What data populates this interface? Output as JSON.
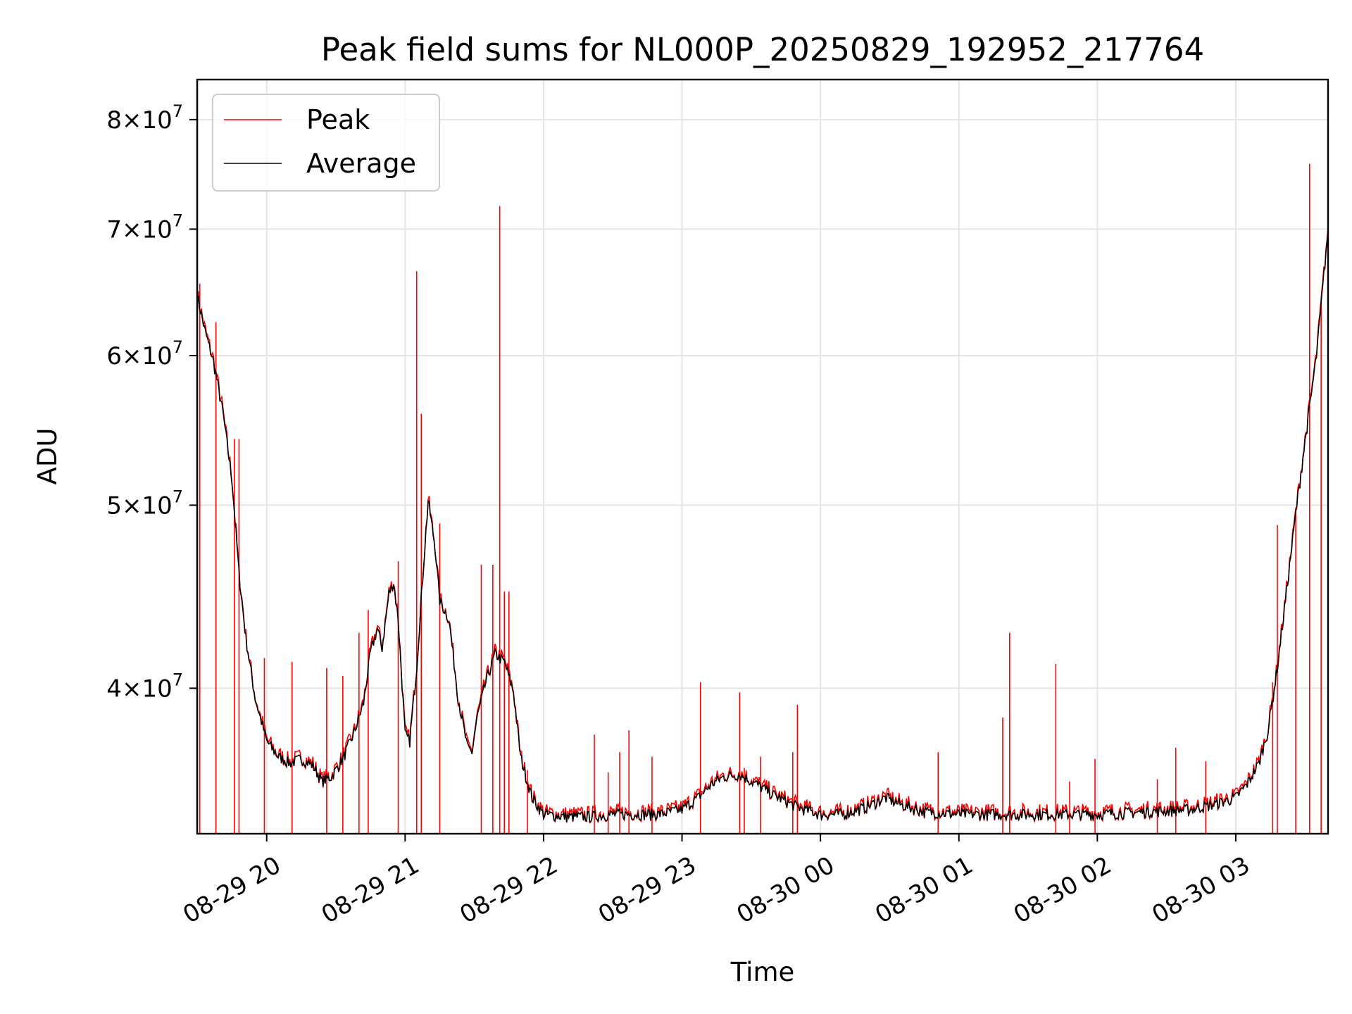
{
  "chart_data": {
    "type": "line",
    "title": "Peak field sums for NL000P_20250829_192952_217764",
    "xlabel": "Time",
    "ylabel": "ADU",
    "y_scale": "log",
    "x_range": [
      "2025-08-29 19:29:52",
      "2025-08-30 03:40:00"
    ],
    "ylim": [
      33500000,
      84000000
    ],
    "grid": true,
    "legend_position": "top-left",
    "x_ticks": [
      {
        "label": "08-29 20",
        "t": "2025-08-29 20:00"
      },
      {
        "label": "08-29 21",
        "t": "2025-08-29 21:00"
      },
      {
        "label": "08-29 22",
        "t": "2025-08-29 22:00"
      },
      {
        "label": "08-29 23",
        "t": "2025-08-29 23:00"
      },
      {
        "label": "08-30 00",
        "t": "2025-08-30 00:00"
      },
      {
        "label": "08-30 01",
        "t": "2025-08-30 01:00"
      },
      {
        "label": "08-30 02",
        "t": "2025-08-30 02:00"
      },
      {
        "label": "08-30 03",
        "t": "2025-08-30 03:00"
      }
    ],
    "y_ticks": [
      {
        "value": 40000000,
        "mantissa": "4",
        "base": "10",
        "exp": "7"
      },
      {
        "value": 50000000,
        "mantissa": "5",
        "base": "10",
        "exp": "7"
      },
      {
        "value": 60000000,
        "mantissa": "6",
        "base": "10",
        "exp": "7"
      },
      {
        "value": 70000000,
        "mantissa": "7",
        "base": "10",
        "exp": "7"
      },
      {
        "value": 80000000,
        "mantissa": "8",
        "base": "10",
        "exp": "7"
      }
    ],
    "series": [
      {
        "name": "Average",
        "color": "#000000",
        "points": [
          [
            "2025-08-29 19:30",
            64500000
          ],
          [
            "2025-08-29 19:33",
            62000000
          ],
          [
            "2025-08-29 19:37",
            59500000
          ],
          [
            "2025-08-29 19:41",
            56000000
          ],
          [
            "2025-08-29 19:45",
            51500000
          ],
          [
            "2025-08-29 19:48",
            46000000
          ],
          [
            "2025-08-29 19:51",
            42500000
          ],
          [
            "2025-08-29 19:55",
            39500000
          ],
          [
            "2025-08-29 20:00",
            37500000
          ],
          [
            "2025-08-29 20:05",
            36800000
          ],
          [
            "2025-08-29 20:10",
            36500000
          ],
          [
            "2025-08-29 20:15",
            36700000
          ],
          [
            "2025-08-29 20:20",
            36400000
          ],
          [
            "2025-08-29 20:24",
            35700000
          ],
          [
            "2025-08-29 20:28",
            35900000
          ],
          [
            "2025-08-29 20:33",
            36700000
          ],
          [
            "2025-08-29 20:38",
            37900000
          ],
          [
            "2025-08-29 20:42",
            39300000
          ],
          [
            "2025-08-29 20:45",
            41800000
          ],
          [
            "2025-08-29 20:48",
            43000000
          ],
          [
            "2025-08-29 20:50",
            42000000
          ],
          [
            "2025-08-29 20:53",
            44900000
          ],
          [
            "2025-08-29 20:55",
            45500000
          ],
          [
            "2025-08-29 20:57",
            43500000
          ],
          [
            "2025-08-29 21:00",
            37800000
          ],
          [
            "2025-08-29 21:02",
            37500000
          ],
          [
            "2025-08-29 21:05",
            41000000
          ],
          [
            "2025-08-29 21:08",
            46500000
          ],
          [
            "2025-08-29 21:10",
            50300000
          ],
          [
            "2025-08-29 21:13",
            47500000
          ],
          [
            "2025-08-29 21:15",
            44500000
          ],
          [
            "2025-08-29 21:17",
            44000000
          ],
          [
            "2025-08-29 21:19",
            43500000
          ],
          [
            "2025-08-29 21:23",
            39500000
          ],
          [
            "2025-08-29 21:27",
            37200000
          ],
          [
            "2025-08-29 21:29",
            37000000
          ],
          [
            "2025-08-29 21:31",
            38500000
          ],
          [
            "2025-08-29 21:35",
            40300000
          ],
          [
            "2025-08-29 21:39",
            41700000
          ],
          [
            "2025-08-29 21:43",
            41300000
          ],
          [
            "2025-08-29 21:47",
            39800000
          ],
          [
            "2025-08-29 21:50",
            36800000
          ],
          [
            "2025-08-29 21:55",
            35000000
          ],
          [
            "2025-08-29 22:00",
            34300000
          ],
          [
            "2025-08-29 22:10",
            34200000
          ],
          [
            "2025-08-29 22:20",
            34200000
          ],
          [
            "2025-08-29 22:30",
            34300000
          ],
          [
            "2025-08-29 22:40",
            34300000
          ],
          [
            "2025-08-29 22:50",
            34300000
          ],
          [
            "2025-08-29 23:00",
            34500000
          ],
          [
            "2025-08-29 23:07",
            35000000
          ],
          [
            "2025-08-29 23:13",
            35600000
          ],
          [
            "2025-08-29 23:18",
            35900000
          ],
          [
            "2025-08-29 23:25",
            36000000
          ],
          [
            "2025-08-29 23:32",
            35600000
          ],
          [
            "2025-08-29 23:40",
            35100000
          ],
          [
            "2025-08-29 23:50",
            34600000
          ],
          [
            "2025-08-30 00:00",
            34300000
          ],
          [
            "2025-08-30 00:10",
            34300000
          ],
          [
            "2025-08-30 00:20",
            34600000
          ],
          [
            "2025-08-30 00:28",
            35000000
          ],
          [
            "2025-08-30 00:35",
            34700000
          ],
          [
            "2025-08-30 00:45",
            34400000
          ],
          [
            "2025-08-30 01:00",
            34300000
          ],
          [
            "2025-08-30 01:20",
            34300000
          ],
          [
            "2025-08-30 01:40",
            34300000
          ],
          [
            "2025-08-30 02:00",
            34300000
          ],
          [
            "2025-08-30 02:20",
            34400000
          ],
          [
            "2025-08-30 02:40",
            34500000
          ],
          [
            "2025-08-30 02:50",
            34700000
          ],
          [
            "2025-08-30 03:00",
            35000000
          ],
          [
            "2025-08-30 03:05",
            35600000
          ],
          [
            "2025-08-30 03:10",
            36500000
          ],
          [
            "2025-08-30 03:14",
            38000000
          ],
          [
            "2025-08-30 03:18",
            41000000
          ],
          [
            "2025-08-30 03:22",
            45000000
          ],
          [
            "2025-08-30 03:26",
            49500000
          ],
          [
            "2025-08-30 03:30",
            54000000
          ],
          [
            "2025-08-30 03:35",
            60000000
          ],
          [
            "2025-08-30 03:40",
            70000000
          ]
        ]
      },
      {
        "name": "Peak",
        "color": "#ff0000",
        "spikes": [
          [
            "2025-08-29 19:30",
            84000000
          ],
          [
            "2025-08-29 19:31",
            65500000
          ],
          [
            "2025-08-29 19:38",
            62500000
          ],
          [
            "2025-08-29 19:46",
            54200000
          ],
          [
            "2025-08-29 19:48",
            54200000
          ],
          [
            "2025-08-29 19:59",
            41500000
          ],
          [
            "2025-08-29 20:11",
            41300000
          ],
          [
            "2025-08-29 20:26",
            41000000
          ],
          [
            "2025-08-29 20:33",
            40600000
          ],
          [
            "2025-08-29 20:40",
            42800000
          ],
          [
            "2025-08-29 20:44",
            44000000
          ],
          [
            "2025-08-29 20:57",
            46700000
          ],
          [
            "2025-08-29 21:05",
            66500000
          ],
          [
            "2025-08-29 21:07",
            55900000
          ],
          [
            "2025-08-29 21:15",
            48900000
          ],
          [
            "2025-08-29 21:33",
            46500000
          ],
          [
            "2025-08-29 21:38",
            46500000
          ],
          [
            "2025-08-29 21:41",
            72000000
          ],
          [
            "2025-08-29 21:43",
            45000000
          ],
          [
            "2025-08-29 21:45",
            45000000
          ],
          [
            "2025-08-29 21:53",
            36200000
          ],
          [
            "2025-08-29 22:22",
            37800000
          ],
          [
            "2025-08-29 22:28",
            36100000
          ],
          [
            "2025-08-29 22:33",
            37000000
          ],
          [
            "2025-08-29 22:37",
            38000000
          ],
          [
            "2025-08-29 22:47",
            36800000
          ],
          [
            "2025-08-29 23:08",
            40300000
          ],
          [
            "2025-08-29 23:25",
            39800000
          ],
          [
            "2025-08-29 23:27",
            36300000
          ],
          [
            "2025-08-29 23:34",
            36800000
          ],
          [
            "2025-08-29 23:48",
            37000000
          ],
          [
            "2025-08-29 23:50",
            39200000
          ],
          [
            "2025-08-30 00:51",
            37000000
          ],
          [
            "2025-08-30 01:19",
            38600000
          ],
          [
            "2025-08-30 01:22",
            42800000
          ],
          [
            "2025-08-30 01:42",
            41200000
          ],
          [
            "2025-08-30 01:48",
            35700000
          ],
          [
            "2025-08-30 01:59",
            36700000
          ],
          [
            "2025-08-30 02:26",
            35800000
          ],
          [
            "2025-08-30 02:34",
            37200000
          ],
          [
            "2025-08-30 02:47",
            36600000
          ],
          [
            "2025-08-30 03:16",
            40300000
          ],
          [
            "2025-08-30 03:18",
            48800000
          ],
          [
            "2025-08-30 03:26",
            49700000
          ],
          [
            "2025-08-30 03:32",
            75800000
          ],
          [
            "2025-08-30 03:37",
            64000000
          ]
        ]
      }
    ]
  }
}
